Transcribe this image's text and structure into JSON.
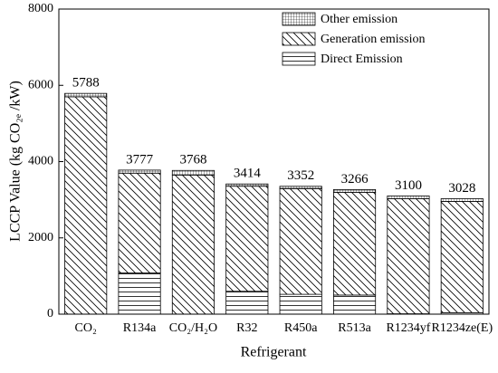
{
  "chart_data": {
    "type": "stacked_bar",
    "x_label": "Refrigerant",
    "y_label": "LCCP Value (kg CO₂ₑ /kW)",
    "categories": [
      "CO₂",
      "R134a",
      "CO₂/H₂O",
      "R32",
      "R450a",
      "R513a",
      "R1234yf",
      "R1234ze(E)"
    ],
    "series": [
      {
        "name": "Direct Emission",
        "color": "#000000",
        "pattern": "horizontal",
        "values": [
          0,
          1080,
          0,
          600,
          520,
          500,
          10,
          40
        ]
      },
      {
        "name": "Generation emission",
        "color": "#000000",
        "pattern": "diagonal",
        "values": [
          5700,
          2617,
          3648,
          2754,
          2772,
          2696,
          3020,
          2918
        ]
      },
      {
        "name": "Other emission",
        "color": "#000000",
        "pattern": "grid",
        "values": [
          88,
          80,
          120,
          60,
          60,
          70,
          70,
          70
        ]
      }
    ],
    "totals": [
      5788,
      3777,
      3768,
      3414,
      3352,
      3266,
      3100,
      3028
    ],
    "ylim": [
      0,
      8000
    ],
    "yticks": [
      0,
      2000,
      4000,
      6000,
      8000
    ],
    "legend": "upper right"
  }
}
